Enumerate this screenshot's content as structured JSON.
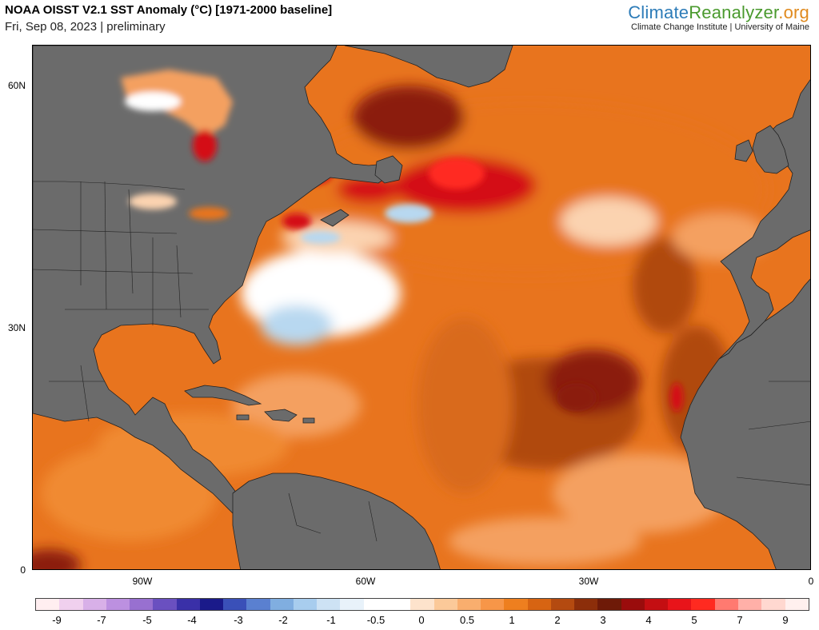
{
  "header": {
    "title": "NOAA OISST V2.1 SST Anomaly (°C) [1971-2000 baseline]",
    "subtitle": "Fri, Sep 08, 2023 | preliminary"
  },
  "brand": {
    "name_part1": "Climate",
    "name_part2": "Reanalyzer",
    "name_part3": ".org",
    "institution": "Climate Change Institute | University of Maine"
  },
  "map": {
    "lat_labels": [
      "60N",
      "30N",
      "0"
    ],
    "lon_labels": [
      "90W",
      "60W",
      "30W",
      "0"
    ],
    "land_color": "#6b6b6b",
    "colors": {
      "dark_red": "#8b1a0a",
      "red": "#d40d12",
      "brown": "#b04a10",
      "orange": "#e8741e",
      "light_orange": "#f4a060",
      "peach": "#fbd3b0",
      "white": "#ffffff",
      "light_blue": "#b8d8f0"
    }
  },
  "colorbar": {
    "colors": [
      "#ffeef0",
      "#f0d0ee",
      "#d8b0e8",
      "#bc90e0",
      "#9870d0",
      "#6a50c0",
      "#3a30a8",
      "#1a1a8a",
      "#3a50b8",
      "#5a80d0",
      "#80aee0",
      "#a8cdee",
      "#cde2f4",
      "#e8f2fa",
      "#ffffff",
      "#ffffff",
      "#fde3cc",
      "#fbc999",
      "#f9ae6e",
      "#f79648",
      "#ee7f1f",
      "#d76412",
      "#b44a10",
      "#8c2e0a",
      "#6e1a08",
      "#9a0c0c",
      "#c40e12",
      "#e8141a",
      "#ff2a20",
      "#ff7a70",
      "#ffb0a8",
      "#ffd8d0",
      "#fff0ee"
    ],
    "tick_labels": [
      "-9",
      "-7",
      "-5",
      "-4",
      "-3",
      "-2",
      "-1",
      "-0.5",
      "0",
      "0.5",
      "1",
      "2",
      "3",
      "4",
      "5",
      "7",
      "9"
    ]
  }
}
